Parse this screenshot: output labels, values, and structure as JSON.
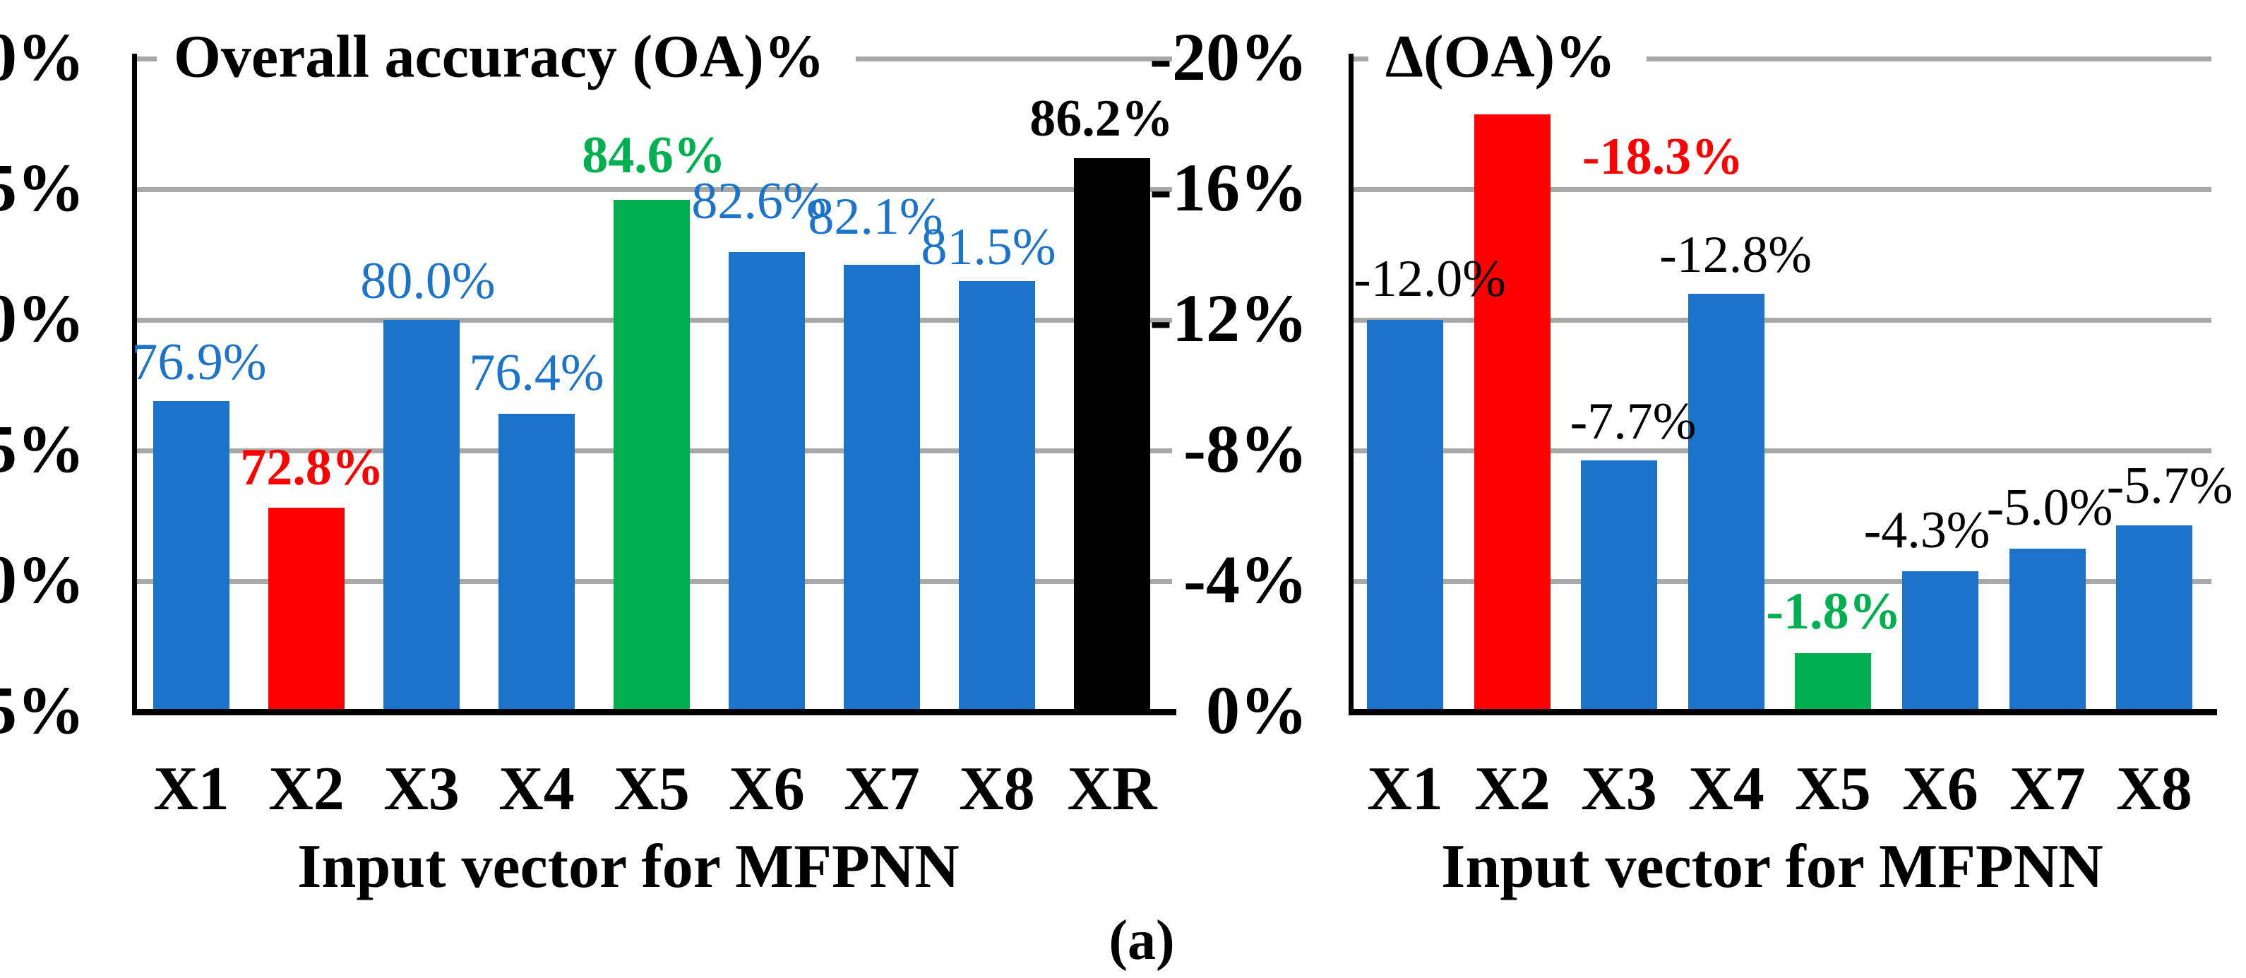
{
  "figure": {
    "caption": "(a)"
  },
  "colors": {
    "blue": "#1B74C9",
    "red": "#FF0000",
    "green": "#00B050",
    "black": "#000000",
    "gridline": "#A8A8A8",
    "axis": "#000000",
    "background": "#FFFFFF"
  },
  "chart_data": [
    {
      "type": "bar",
      "title": "Overall accuracy (OA)%",
      "xlabel": "Input vector for MFPNN",
      "categories": [
        "X1",
        "X2",
        "X3",
        "X4",
        "X5",
        "X6",
        "X7",
        "X8",
        "XR"
      ],
      "values": [
        76.9,
        72.8,
        80.0,
        76.4,
        84.6,
        82.6,
        82.1,
        81.5,
        86.2
      ],
      "data_labels": [
        "76.9%",
        "72.8%",
        "80.0%",
        "76.4%",
        "84.6%",
        "82.6%",
        "82.1%",
        "81.5%",
        "86.2%"
      ],
      "bar_colors": [
        "blue",
        "red",
        "blue",
        "blue",
        "green",
        "blue",
        "blue",
        "blue",
        "black"
      ],
      "label_colors": [
        "blue",
        "red",
        "blue",
        "blue",
        "green",
        "blue",
        "blue",
        "blue",
        "black"
      ],
      "label_bold": [
        false,
        true,
        false,
        false,
        true,
        false,
        false,
        false,
        true
      ],
      "y_axis": {
        "tick_labels": [
          "0%",
          "5%",
          "0%",
          "5%",
          "0%",
          "5%"
        ],
        "ylim": [
          65,
          90
        ],
        "grid": true,
        "inverted": false
      }
    },
    {
      "type": "bar",
      "title": "Δ(OA)%",
      "xlabel": "Input vector for MFPNN",
      "categories": [
        "X1",
        "X2",
        "X3",
        "X4",
        "X5",
        "X6",
        "X7",
        "X8"
      ],
      "values": [
        -12.0,
        -18.3,
        -7.7,
        -12.8,
        -1.8,
        -4.3,
        -5.0,
        -5.7
      ],
      "data_labels": [
        "-12.0%",
        "-18.3%",
        "-7.7%",
        "-12.8%",
        "-1.8%",
        "-4.3%",
        "-5.0%",
        "-5.7%"
      ],
      "bar_colors": [
        "blue",
        "red",
        "blue",
        "blue",
        "green",
        "blue",
        "blue",
        "blue"
      ],
      "label_colors": [
        "black",
        "red",
        "black",
        "black",
        "green",
        "black",
        "black",
        "black"
      ],
      "label_bold": [
        false,
        true,
        false,
        false,
        true,
        false,
        false,
        false
      ],
      "y_axis": {
        "tick_labels": [
          "-20%",
          "-16%",
          "-12%",
          "-8%",
          "-4%",
          "0%"
        ],
        "ylim": [
          -20,
          0
        ],
        "grid": true,
        "inverted": true
      }
    }
  ]
}
